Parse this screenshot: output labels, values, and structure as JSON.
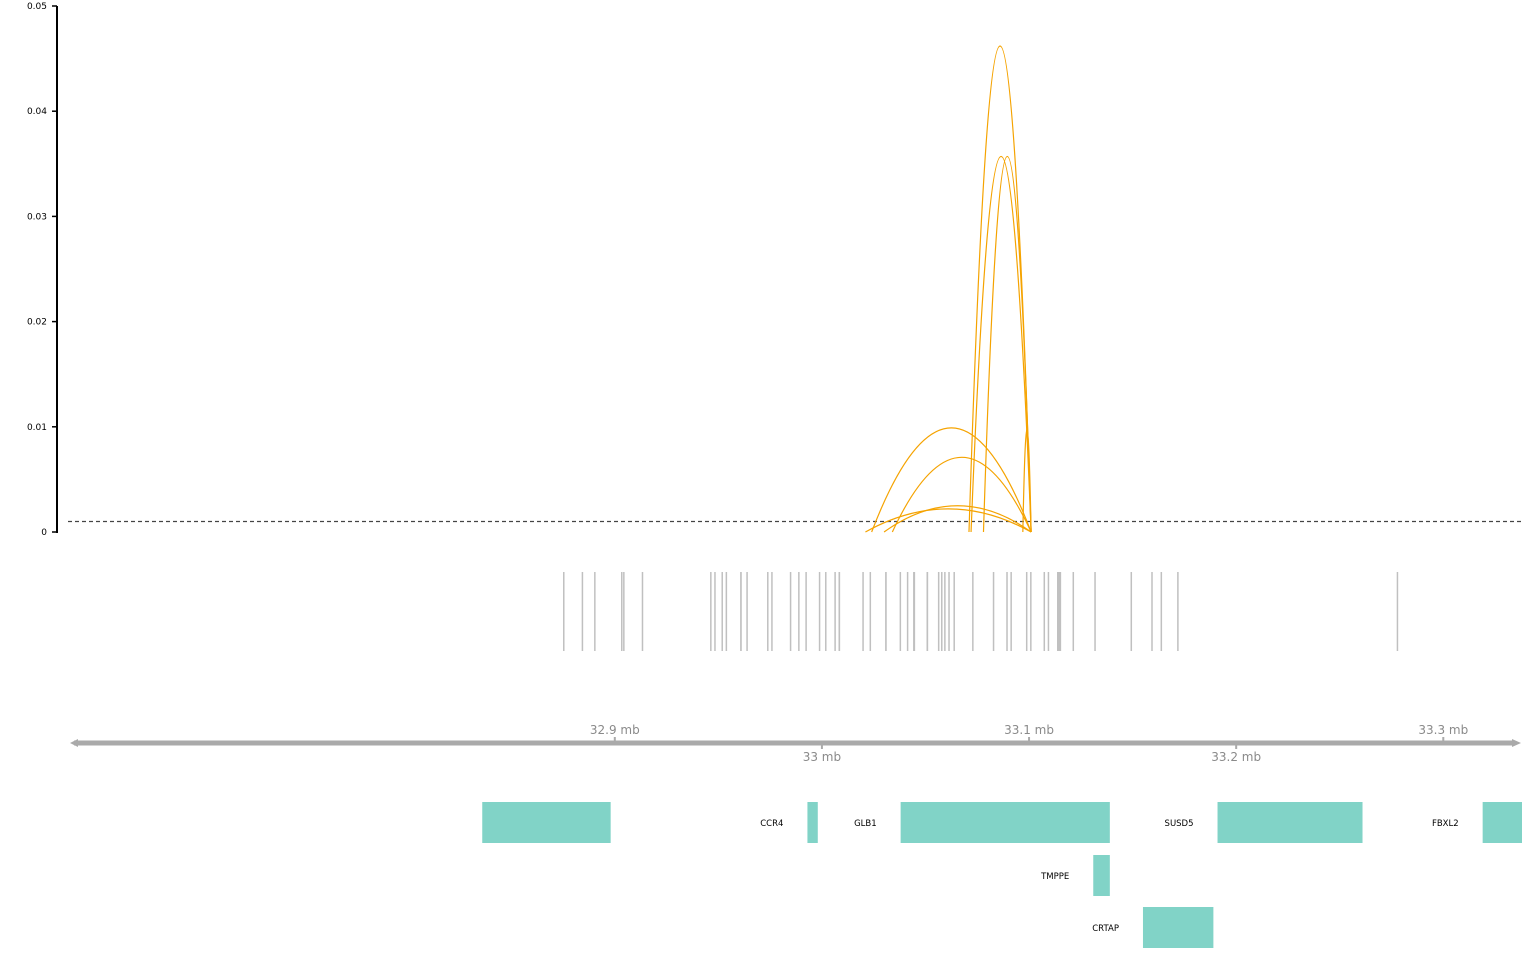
{
  "chart_data": {
    "type": "genome-track",
    "units": "bp",
    "xlim": [
      32636000,
      33338000
    ],
    "arcs": {
      "color": "#f5a300",
      "ylim": [
        0,
        0.05
      ],
      "yticks": [
        {
          "value": 0,
          "label": "0"
        },
        {
          "value": 0.01,
          "label": "0.01"
        },
        {
          "value": 0.02,
          "label": "0.02"
        },
        {
          "value": 0.03,
          "label": "0.03"
        },
        {
          "value": 0.04,
          "label": "0.04"
        },
        {
          "value": 0.05,
          "label": "0.05"
        }
      ],
      "threshold": 0.001,
      "items": [
        {
          "start": 33071000,
          "end": 33101000,
          "height": 0.0462
        },
        {
          "start": 33072000,
          "end": 33101000,
          "height": 0.0357
        },
        {
          "start": 33078000,
          "end": 33101000,
          "height": 0.0357
        },
        {
          "start": 33024000,
          "end": 33101000,
          "height": 0.0099
        },
        {
          "start": 33034000,
          "end": 33101000,
          "height": 0.0071
        },
        {
          "start": 33030000,
          "end": 33101000,
          "height": 0.0025
        },
        {
          "start": 33021000,
          "end": 33101000,
          "height": 0.0022
        },
        {
          "start": 33097000,
          "end": 33101000,
          "height": 0.0098
        }
      ]
    },
    "peaks": {
      "color": "#c0c0c0",
      "items": [
        {
          "start": 32875000,
          "end": 32875400
        },
        {
          "start": 32884000,
          "end": 32884400
        },
        {
          "start": 32890000,
          "end": 32890300
        },
        {
          "start": 32903000,
          "end": 32903400
        },
        {
          "start": 32904000,
          "end": 32904300
        },
        {
          "start": 32913000,
          "end": 32913300
        },
        {
          "start": 32946000,
          "end": 32946300
        },
        {
          "start": 32948000,
          "end": 32948400
        },
        {
          "start": 32951500,
          "end": 32951900
        },
        {
          "start": 32953500,
          "end": 32953800
        },
        {
          "start": 32960500,
          "end": 32961300
        },
        {
          "start": 32963500,
          "end": 32963900
        },
        {
          "start": 32973500,
          "end": 32973900
        },
        {
          "start": 32975500,
          "end": 32975800
        },
        {
          "start": 32984500,
          "end": 32984800
        },
        {
          "start": 32988500,
          "end": 32988800
        },
        {
          "start": 32992000,
          "end": 32992600
        },
        {
          "start": 32998500,
          "end": 32998900
        },
        {
          "start": 33001500,
          "end": 33001800
        },
        {
          "start": 33006000,
          "end": 33006600
        },
        {
          "start": 33008000,
          "end": 33008800
        },
        {
          "start": 33019500,
          "end": 33019800
        },
        {
          "start": 33023000,
          "end": 33023300
        },
        {
          "start": 33030500,
          "end": 33031300
        },
        {
          "start": 33037500,
          "end": 33037800
        },
        {
          "start": 33041000,
          "end": 33041400
        },
        {
          "start": 33044000,
          "end": 33045000
        },
        {
          "start": 33050500,
          "end": 33051300
        },
        {
          "start": 33056000,
          "end": 33056600
        },
        {
          "start": 33057500,
          "end": 33057800
        },
        {
          "start": 33059000,
          "end": 33059300
        },
        {
          "start": 33061000,
          "end": 33061300
        },
        {
          "start": 33063500,
          "end": 33063800
        },
        {
          "start": 33072500,
          "end": 33072800
        },
        {
          "start": 33082500,
          "end": 33082800
        },
        {
          "start": 33089000,
          "end": 33089400
        },
        {
          "start": 33091000,
          "end": 33091300
        },
        {
          "start": 33098500,
          "end": 33098800
        },
        {
          "start": 33100500,
          "end": 33100800
        },
        {
          "start": 33107000,
          "end": 33107400
        },
        {
          "start": 33109000,
          "end": 33109300
        },
        {
          "start": 33113500,
          "end": 33115500
        },
        {
          "start": 33121000,
          "end": 33121300
        },
        {
          "start": 33131500,
          "end": 33131800
        },
        {
          "start": 33149000,
          "end": 33149400
        },
        {
          "start": 33159000,
          "end": 33159400
        },
        {
          "start": 33163500,
          "end": 33163800
        },
        {
          "start": 33171500,
          "end": 33171800
        },
        {
          "start": 33277500,
          "end": 33277800
        }
      ]
    },
    "axis": {
      "color": "#aaaaaa",
      "ticks_top": [
        {
          "value": 32900000,
          "label": "32.9 mb"
        },
        {
          "value": 33100000,
          "label": "33.1 mb"
        },
        {
          "value": 33300000,
          "label": "33.3 mb"
        }
      ],
      "ticks_bottom": [
        {
          "value": 33000000,
          "label": "33 mb"
        },
        {
          "value": 33200000,
          "label": "33.2 mb"
        }
      ]
    },
    "genes": {
      "color": "#81d3c7",
      "items": [
        {
          "name": "",
          "start": 32836000,
          "end": 32898000,
          "row": 0
        },
        {
          "name": "CCR4",
          "start": 32993000,
          "end": 32998000,
          "row": 0
        },
        {
          "name": "GLB1",
          "start": 33038000,
          "end": 33139000,
          "row": 0
        },
        {
          "name": "SUSD5",
          "start": 33191000,
          "end": 33261000,
          "row": 0
        },
        {
          "name": "FBXL2",
          "start": 33319000,
          "end": 33389000,
          "row": 0
        },
        {
          "name": "TMPPE",
          "start": 33131000,
          "end": 33139000,
          "row": 1
        },
        {
          "name": "CRTAP",
          "start": 33155000,
          "end": 33189000,
          "row": 2
        }
      ]
    }
  }
}
